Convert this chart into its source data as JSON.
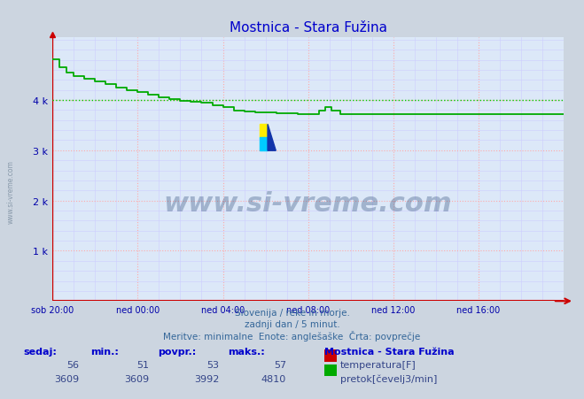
{
  "title": "Mostnica - Stara Fužina",
  "title_color": "#0000cc",
  "bg_color": "#ccd5e0",
  "plot_bg_color": "#dce8f8",
  "grid_color_major": "#ffaaaa",
  "grid_color_minor": "#ccccff",
  "line_color": "#00aa00",
  "line_width": 1.2,
  "ytick_color": "#0000aa",
  "xtick_color": "#0000aa",
  "axis_color": "#cc0000",
  "ylabel_ticks": [
    "1 k",
    "2 k",
    "3 k",
    "4 k"
  ],
  "ylabel_values": [
    1000,
    2000,
    3000,
    4000
  ],
  "ylim": [
    0,
    5250
  ],
  "xlim": [
    0,
    24
  ],
  "xtick_labels": [
    "sob 20:00",
    "ned 00:00",
    "ned 04:00",
    "ned 08:00",
    "ned 12:00",
    "ned 16:00"
  ],
  "xtick_positions": [
    0,
    4,
    8,
    12,
    16,
    20
  ],
  "watermark_text": "www.si-vreme.com",
  "watermark_color": "#1a3a6a",
  "watermark_alpha": 0.3,
  "footer_line1": "Slovenija / reke in morje.",
  "footer_line2": "zadnji dan / 5 minut.",
  "footer_line3": "Meritve: minimalne  Enote: anglešaške  Črta: povprečje",
  "footer_color": "#336699",
  "legend_station": "Mostnica - Stara Fužina",
  "legend_temp_label": "temperatura[F]",
  "legend_flow_label": "pretok[čevelj3/min]",
  "table_headers": [
    "sedaj:",
    "min.:",
    "povpr.:",
    "maks.:"
  ],
  "table_temp": [
    56,
    51,
    53,
    57
  ],
  "table_flow": [
    3609,
    3609,
    3992,
    4810
  ],
  "flow_data_x": [
    0.0,
    0.0,
    0.33,
    0.33,
    0.67,
    0.67,
    1.0,
    1.0,
    1.5,
    1.5,
    2.0,
    2.0,
    2.5,
    2.5,
    3.0,
    3.0,
    3.5,
    3.5,
    4.0,
    4.0,
    4.5,
    4.5,
    5.0,
    5.0,
    5.5,
    5.5,
    6.0,
    6.0,
    6.5,
    6.5,
    7.0,
    7.0,
    7.5,
    7.5,
    8.0,
    8.0,
    8.5,
    8.5,
    9.0,
    9.0,
    9.5,
    9.5,
    10.0,
    10.0,
    10.5,
    10.5,
    11.0,
    11.0,
    11.5,
    11.5,
    12.0,
    12.0,
    12.5,
    12.5,
    12.8,
    12.8,
    13.1,
    13.1,
    13.5,
    13.5,
    24.0
  ],
  "flow_data_y": [
    4810,
    4810,
    4810,
    4650,
    4650,
    4550,
    4550,
    4480,
    4480,
    4420,
    4420,
    4370,
    4370,
    4310,
    4310,
    4250,
    4250,
    4200,
    4200,
    4150,
    4150,
    4100,
    4100,
    4060,
    4060,
    4020,
    4020,
    3990,
    3990,
    3960,
    3960,
    3940,
    3940,
    3900,
    3900,
    3860,
    3860,
    3790,
    3790,
    3770,
    3770,
    3760,
    3760,
    3750,
    3750,
    3740,
    3740,
    3730,
    3730,
    3720,
    3720,
    3715,
    3715,
    3780,
    3780,
    3860,
    3860,
    3790,
    3790,
    3720,
    3720
  ],
  "avg_line_y": 3992,
  "avg_line_color": "#00cc00",
  "avg_line_style": "dotted",
  "left_watermark": "www.si-vreme.com",
  "left_watermark_color": "#8899aa"
}
